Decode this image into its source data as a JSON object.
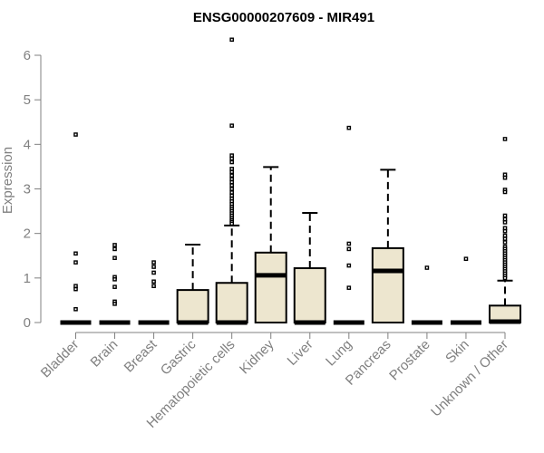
{
  "chart_data": {
    "type": "box",
    "title": "ENSG00000207609 - MIR491",
    "xlabel": "",
    "ylabel": "Expression",
    "ylim": [
      0,
      6
    ],
    "yticks": [
      0,
      1,
      2,
      3,
      4,
      5,
      6
    ],
    "grid": false,
    "colors": {
      "box_fill": "#ede6cf",
      "stroke": "#000000",
      "axis_text": "#808080",
      "title": "#000000"
    },
    "categories": [
      "Bladder",
      "Brain",
      "Breast",
      "Gastric",
      "Hematopoietic cells",
      "Kidney",
      "Liver",
      "Lung",
      "Pancreas",
      "Prostate",
      "Skin",
      "Unknown / Other"
    ],
    "boxes": [
      {
        "category": "Bladder",
        "q1": 0,
        "median": 0,
        "q3": 0,
        "whisker_low": 0,
        "whisker_high": 0,
        "outliers": [
          4.22,
          1.55,
          1.35,
          0.82,
          0.75,
          0.3
        ]
      },
      {
        "category": "Brain",
        "q1": 0,
        "median": 0,
        "q3": 0,
        "whisker_low": 0,
        "whisker_high": 0,
        "outliers": [
          1.74,
          1.65,
          1.45,
          1.02,
          0.97,
          0.8,
          0.47,
          0.42
        ]
      },
      {
        "category": "Breast",
        "q1": 0,
        "median": 0,
        "q3": 0,
        "whisker_low": 0,
        "whisker_high": 0,
        "outliers": [
          1.35,
          1.25,
          1.12,
          0.92,
          0.82
        ]
      },
      {
        "category": "Gastric",
        "q1": 0,
        "median": 0,
        "q3": 0.73,
        "whisker_low": 0,
        "whisker_high": 1.75,
        "outliers": []
      },
      {
        "category": "Hematopoietic cells",
        "q1": 0,
        "median": 0,
        "q3": 0.89,
        "whisker_low": 0,
        "whisker_high": 2.18,
        "outliers": [
          6.35,
          4.42,
          3.75,
          3.68,
          3.6,
          3.45,
          3.38,
          3.3,
          3.22,
          3.15,
          3.08,
          3.0,
          2.92,
          2.85,
          2.78,
          2.72,
          2.66,
          2.6,
          2.55,
          2.5,
          2.45,
          2.4,
          2.35,
          2.3,
          2.26,
          2.22
        ]
      },
      {
        "category": "Kidney",
        "q1": 0,
        "median": 1.06,
        "q3": 1.57,
        "whisker_low": 0,
        "whisker_high": 3.49,
        "outliers": []
      },
      {
        "category": "Liver",
        "q1": 0,
        "median": 0,
        "q3": 1.22,
        "whisker_low": 0,
        "whisker_high": 2.46,
        "outliers": []
      },
      {
        "category": "Lung",
        "q1": 0,
        "median": 0,
        "q3": 0,
        "whisker_low": 0,
        "whisker_high": 0,
        "outliers": [
          4.37,
          1.77,
          1.65,
          1.28,
          0.78
        ]
      },
      {
        "category": "Pancreas",
        "q1": 0,
        "median": 1.16,
        "q3": 1.67,
        "whisker_low": 0,
        "whisker_high": 3.43,
        "outliers": []
      },
      {
        "category": "Prostate",
        "q1": 0,
        "median": 0,
        "q3": 0,
        "whisker_low": 0,
        "whisker_high": 0,
        "outliers": [
          1.23
        ]
      },
      {
        "category": "Skin",
        "q1": 0,
        "median": 0,
        "q3": 0,
        "whisker_low": 0,
        "whisker_high": 0,
        "outliers": [
          1.43
        ]
      },
      {
        "category": "Unknown / Other",
        "q1": 0,
        "median": 0.02,
        "q3": 0.38,
        "whisker_low": 0,
        "whisker_high": 0.94,
        "outliers": [
          4.12,
          3.32,
          3.25,
          2.98,
          2.93,
          2.4,
          2.32,
          2.25,
          2.12,
          2.05,
          1.95,
          1.88,
          1.8,
          1.7,
          1.65,
          1.6,
          1.55,
          1.5,
          1.45,
          1.4,
          1.35,
          1.3,
          1.25,
          1.2,
          1.15,
          1.1,
          1.05,
          1.0
        ]
      }
    ]
  }
}
